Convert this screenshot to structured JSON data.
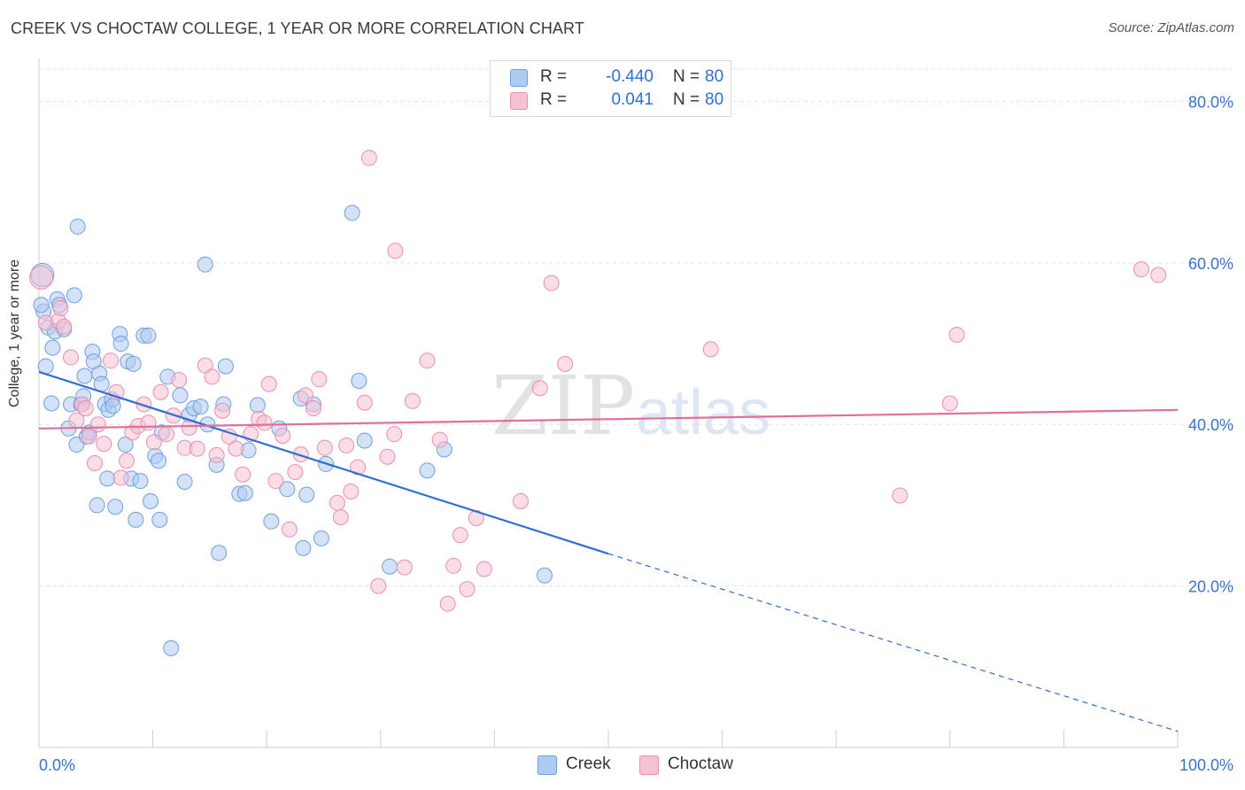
{
  "header": {
    "title": "CREEK VS CHOCTAW COLLEGE, 1 YEAR OR MORE CORRELATION CHART",
    "source": "Source: ZipAtlas.com"
  },
  "legend": {
    "rows": [
      {
        "r_label": "R =",
        "r_value": "-0.440",
        "n_label": "N =",
        "n_value": "80"
      },
      {
        "r_label": "R =",
        "r_value": "0.041",
        "n_label": "N =",
        "n_value": "80"
      }
    ]
  },
  "series_legend": [
    "Creek",
    "Choctaw"
  ],
  "watermark": {
    "zip": "ZIP",
    "atlas": "atlas"
  },
  "colors": {
    "creek_fill": "#aecbf2",
    "creek_stroke": "#6f9fe0",
    "creek_line": "#2f6fcf",
    "choctaw_fill": "#f6c1d2",
    "choctaw_stroke": "#ea8fac",
    "choctaw_line": "#e0709a",
    "axis_text": "#3a72c8"
  },
  "chart_data": {
    "type": "scatter",
    "title": "CREEK VS CHOCTAW COLLEGE, 1 YEAR OR MORE CORRELATION CHART",
    "xlabel": "",
    "ylabel": "College, 1 year or more",
    "xlim": [
      0,
      100
    ],
    "ylim": [
      0,
      84
    ],
    "x_tick_labels": [
      "0.0%",
      "100.0%"
    ],
    "y_ticks": [
      20,
      40,
      60,
      80
    ],
    "y_tick_labels": [
      "20.0%",
      "40.0%",
      "60.0%",
      "80.0%"
    ],
    "grid": true,
    "series": [
      {
        "name": "Creek",
        "r": -0.44,
        "n": 80,
        "trend": {
          "x0": 0,
          "y0": 46.5,
          "x1": 50,
          "y1": 24.0,
          "dashed_to_x": 100,
          "dashed_to_y": 2.0
        },
        "points": [
          [
            0.3,
            58.5
          ],
          [
            0.4,
            54
          ],
          [
            0.8,
            52
          ],
          [
            1.2,
            49.5
          ],
          [
            1.4,
            51.5
          ],
          [
            1.6,
            55.5
          ],
          [
            1.8,
            54.8
          ],
          [
            2.2,
            51.8
          ],
          [
            2.8,
            42.5
          ],
          [
            2.6,
            39.5
          ],
          [
            3.1,
            56
          ],
          [
            3.3,
            37.5
          ],
          [
            3.4,
            64.5
          ],
          [
            3.7,
            42.5
          ],
          [
            3.9,
            43.5
          ],
          [
            4.0,
            46
          ],
          [
            4.2,
            38.5
          ],
          [
            4.4,
            39
          ],
          [
            4.7,
            49
          ],
          [
            4.8,
            47.8
          ],
          [
            5.1,
            30
          ],
          [
            5.3,
            46.3
          ],
          [
            5.5,
            45
          ],
          [
            5.8,
            42.5
          ],
          [
            6.0,
            33.3
          ],
          [
            6.1,
            41.8
          ],
          [
            6.4,
            43.1
          ],
          [
            6.5,
            42.3
          ],
          [
            6.7,
            29.8
          ],
          [
            7.1,
            51.2
          ],
          [
            7.2,
            50
          ],
          [
            7.6,
            37.5
          ],
          [
            7.8,
            47.8
          ],
          [
            8.1,
            33.3
          ],
          [
            8.3,
            47.5
          ],
          [
            8.5,
            28.2
          ],
          [
            8.9,
            33
          ],
          [
            9.2,
            51
          ],
          [
            9.6,
            51
          ],
          [
            9.8,
            30.5
          ],
          [
            10.2,
            36.1
          ],
          [
            10.5,
            35.5
          ],
          [
            10.6,
            28.2
          ],
          [
            10.8,
            39
          ],
          [
            11.3,
            45.9
          ],
          [
            11.6,
            12.3
          ],
          [
            12.4,
            43.6
          ],
          [
            12.8,
            32.9
          ],
          [
            13.2,
            41.2
          ],
          [
            13.6,
            42
          ],
          [
            14.2,
            42.2
          ],
          [
            14.6,
            59.8
          ],
          [
            14.8,
            40
          ],
          [
            15.6,
            35
          ],
          [
            15.8,
            24.1
          ],
          [
            16.2,
            42.5
          ],
          [
            16.4,
            47.2
          ],
          [
            17.6,
            31.4
          ],
          [
            18.1,
            31.5
          ],
          [
            18.4,
            36.8
          ],
          [
            19.2,
            42.4
          ],
          [
            20.4,
            28
          ],
          [
            21.1,
            39.5
          ],
          [
            21.8,
            32
          ],
          [
            23.0,
            43.2
          ],
          [
            23.2,
            24.7
          ],
          [
            23.5,
            31.3
          ],
          [
            24.1,
            42.5
          ],
          [
            24.8,
            25.9
          ],
          [
            25.2,
            35.1
          ],
          [
            27.5,
            66.2
          ],
          [
            28.1,
            45.4
          ],
          [
            28.6,
            38
          ],
          [
            30.8,
            22.4
          ],
          [
            34.1,
            34.3
          ],
          [
            35.6,
            36.9
          ],
          [
            44.4,
            21.3
          ],
          [
            0.2,
            54.8
          ],
          [
            1.1,
            42.6
          ],
          [
            0.6,
            47.2
          ]
        ]
      },
      {
        "name": "Choctaw",
        "r": 0.041,
        "n": 80,
        "trend": {
          "x0": 0,
          "y0": 39.5,
          "x1": 100,
          "y1": 41.8
        },
        "points": [
          [
            0.2,
            58.2
          ],
          [
            0.6,
            52.6
          ],
          [
            1.7,
            52.8
          ],
          [
            1.9,
            54.4
          ],
          [
            2.2,
            52.1
          ],
          [
            2.8,
            48.3
          ],
          [
            3.3,
            40.5
          ],
          [
            3.8,
            42.5
          ],
          [
            4.1,
            42
          ],
          [
            4.4,
            38.5
          ],
          [
            4.9,
            35.2
          ],
          [
            5.2,
            40
          ],
          [
            5.7,
            37.6
          ],
          [
            6.3,
            47.9
          ],
          [
            6.8,
            44
          ],
          [
            7.2,
            33.4
          ],
          [
            7.7,
            35.5
          ],
          [
            8.2,
            39
          ],
          [
            8.7,
            39.8
          ],
          [
            9.2,
            42.5
          ],
          [
            9.6,
            40.2
          ],
          [
            10.1,
            37.8
          ],
          [
            10.7,
            44
          ],
          [
            11.2,
            38.8
          ],
          [
            11.8,
            41.1
          ],
          [
            12.3,
            45.5
          ],
          [
            12.8,
            37.1
          ],
          [
            13.2,
            39.6
          ],
          [
            13.9,
            37
          ],
          [
            14.6,
            47.3
          ],
          [
            15.2,
            45.9
          ],
          [
            15.6,
            36.2
          ],
          [
            16.1,
            41.7
          ],
          [
            16.7,
            38.5
          ],
          [
            17.3,
            37
          ],
          [
            17.9,
            33.8
          ],
          [
            18.6,
            38.8
          ],
          [
            19.3,
            40.7
          ],
          [
            19.8,
            40.2
          ],
          [
            20.2,
            45
          ],
          [
            20.8,
            33
          ],
          [
            21.4,
            38.6
          ],
          [
            22.0,
            27
          ],
          [
            22.5,
            34.1
          ],
          [
            23.0,
            36.3
          ],
          [
            23.4,
            43.6
          ],
          [
            24.1,
            42
          ],
          [
            24.6,
            45.6
          ],
          [
            25.1,
            37.1
          ],
          [
            26.2,
            30.3
          ],
          [
            26.5,
            28.5
          ],
          [
            27.0,
            37.4
          ],
          [
            27.4,
            31.7
          ],
          [
            28.0,
            34.7
          ],
          [
            28.6,
            42.7
          ],
          [
            29.0,
            73
          ],
          [
            29.8,
            20
          ],
          [
            30.6,
            36
          ],
          [
            31.3,
            61.5
          ],
          [
            32.1,
            22.3
          ],
          [
            32.8,
            42.9
          ],
          [
            34.1,
            47.9
          ],
          [
            35.2,
            38.1
          ],
          [
            35.9,
            17.8
          ],
          [
            36.4,
            22.5
          ],
          [
            37.0,
            26.3
          ],
          [
            37.6,
            19.6
          ],
          [
            38.4,
            28.4
          ],
          [
            39.1,
            22.1
          ],
          [
            42.3,
            30.5
          ],
          [
            44.0,
            44.5
          ],
          [
            45.0,
            57.5
          ],
          [
            46.2,
            47.5
          ],
          [
            59.0,
            49.3
          ],
          [
            75.6,
            31.2
          ],
          [
            80.0,
            42.6
          ],
          [
            80.6,
            51.1
          ],
          [
            96.8,
            59.2
          ],
          [
            98.3,
            58.5
          ],
          [
            31.2,
            38.8
          ]
        ]
      }
    ]
  }
}
